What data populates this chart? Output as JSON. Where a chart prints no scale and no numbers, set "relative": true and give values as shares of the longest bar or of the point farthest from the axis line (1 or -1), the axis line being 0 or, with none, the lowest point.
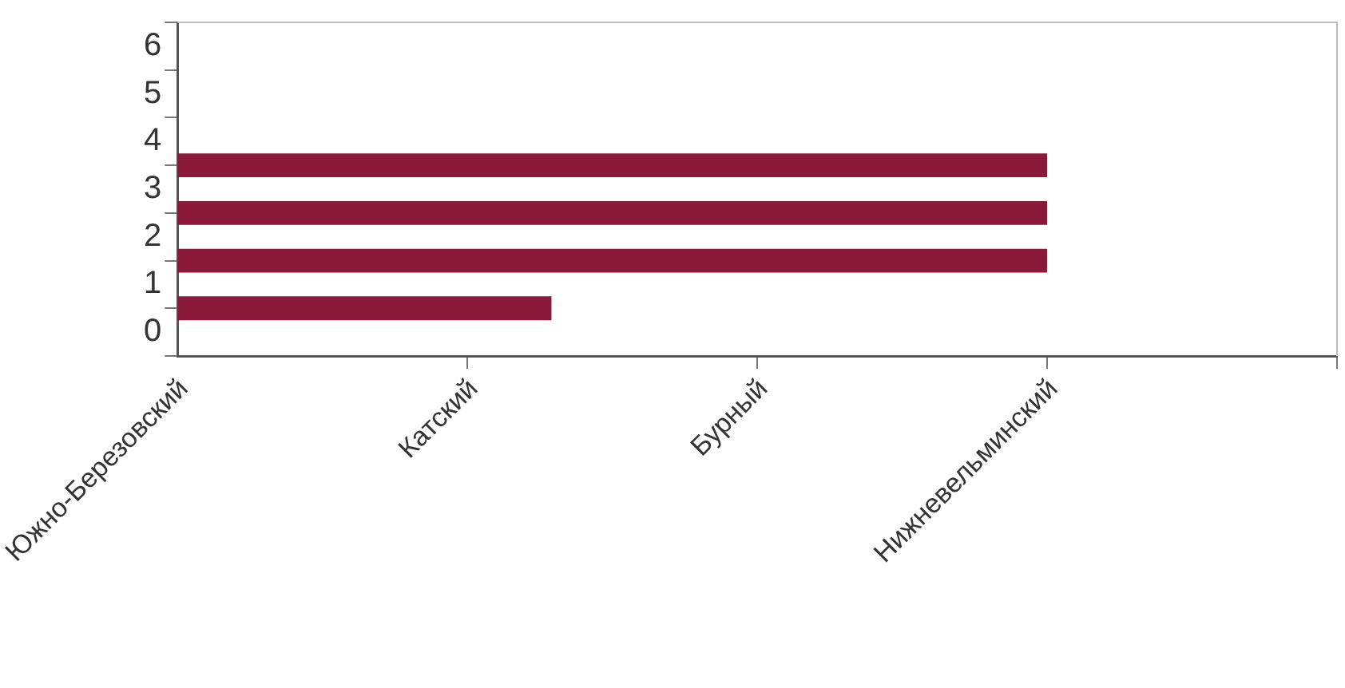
{
  "chart_data": {
    "type": "bar",
    "orientation": "horizontal",
    "relative": true,
    "categories": [
      null,
      null,
      null,
      null
    ],
    "values": [
      1,
      1,
      1,
      0.43
    ],
    "color": "#8b1a3a",
    "annotations": [
      "Южно-Березовский",
      "Катский",
      "Бурный",
      "Нижневельминский",
      "0",
      "1",
      "2",
      "3",
      "4",
      "5",
      "6"
    ],
    "grid": false,
    "legend": false
  }
}
